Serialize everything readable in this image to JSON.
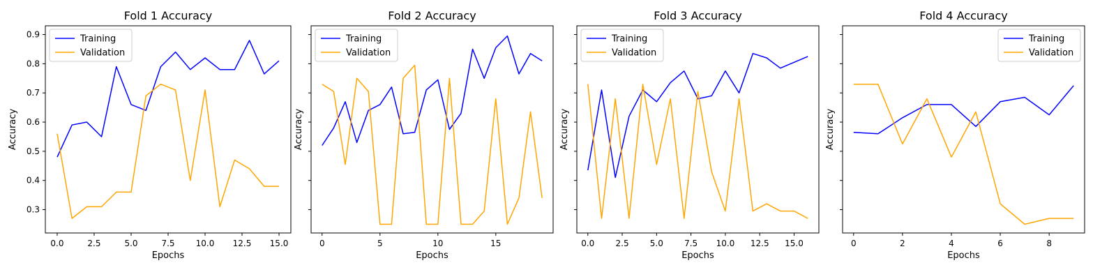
{
  "colors": {
    "training": "#0000ff",
    "validation": "#ffa500"
  },
  "chart_data": [
    {
      "type": "line",
      "title": "Fold 1 Accuracy",
      "xlabel": "Epochs",
      "ylabel": "Accuracy",
      "xlim": [
        -0.8,
        15.8
      ],
      "ylim": [
        0.22,
        0.93
      ],
      "xticks": [
        0,
        2.5,
        5,
        7.5,
        10,
        12.5,
        15
      ],
      "xtick_labels": [
        "0.0",
        "2.5",
        "5.0",
        "7.5",
        "10.0",
        "12.5",
        "15.0"
      ],
      "yticks": [
        0.3,
        0.4,
        0.5,
        0.6,
        0.7,
        0.8,
        0.9
      ],
      "ytick_labels": [
        "0.3",
        "0.4",
        "0.5",
        "0.6",
        "0.7",
        "0.8",
        "0.9"
      ],
      "legend": "upper left",
      "x": [
        0,
        1,
        2,
        3,
        4,
        5,
        6,
        7,
        8,
        9,
        10,
        11,
        12,
        13,
        14,
        15
      ],
      "series": [
        {
          "name": "Training",
          "color": "#0000ff",
          "values": [
            0.48,
            0.59,
            0.6,
            0.55,
            0.79,
            0.66,
            0.64,
            0.79,
            0.84,
            0.78,
            0.82,
            0.78,
            0.78,
            0.88,
            0.765,
            0.81
          ]
        },
        {
          "name": "Validation",
          "color": "#ffa500",
          "values": [
            0.56,
            0.27,
            0.31,
            0.31,
            0.36,
            0.36,
            0.69,
            0.73,
            0.71,
            0.4,
            0.71,
            0.31,
            0.47,
            0.44,
            0.38,
            0.38
          ]
        }
      ]
    },
    {
      "type": "line",
      "title": "Fold 2 Accuracy",
      "xlabel": "Epochs",
      "ylabel": "Accuracy",
      "xlim": [
        -0.95,
        19.95
      ],
      "ylim": [
        0.22,
        0.93
      ],
      "xticks": [
        0,
        5,
        10,
        15
      ],
      "xtick_labels": [
        "0",
        "5",
        "10",
        "15"
      ],
      "yticks": [
        0.3,
        0.4,
        0.5,
        0.6,
        0.7,
        0.8,
        0.9
      ],
      "ytick_labels": [
        "",
        "",
        "",
        "",
        "",
        "",
        ""
      ],
      "legend": "upper left",
      "x": [
        0,
        1,
        2,
        3,
        4,
        5,
        6,
        7,
        8,
        9,
        10,
        11,
        12,
        13,
        14,
        15,
        16,
        17,
        18,
        19
      ],
      "series": [
        {
          "name": "Training",
          "color": "#0000ff",
          "values": [
            0.52,
            0.58,
            0.67,
            0.53,
            0.64,
            0.66,
            0.72,
            0.56,
            0.565,
            0.71,
            0.745,
            0.575,
            0.63,
            0.85,
            0.75,
            0.855,
            0.895,
            0.765,
            0.835,
            0.81
          ]
        },
        {
          "name": "Validation",
          "color": "#ffa500",
          "values": [
            0.73,
            0.705,
            0.455,
            0.75,
            0.705,
            0.25,
            0.25,
            0.75,
            0.795,
            0.25,
            0.25,
            0.75,
            0.25,
            0.25,
            0.295,
            0.68,
            0.25,
            0.34,
            0.635,
            0.34
          ]
        }
      ]
    },
    {
      "type": "line",
      "title": "Fold 3 Accuracy",
      "xlabel": "Epochs",
      "ylabel": "Accuracy",
      "xlim": [
        -0.8,
        16.8
      ],
      "ylim": [
        0.22,
        0.93
      ],
      "xticks": [
        0,
        2.5,
        5,
        7.5,
        10,
        12.5,
        15
      ],
      "xtick_labels": [
        "0.0",
        "2.5",
        "5.0",
        "7.5",
        "10.0",
        "12.5",
        "15.0"
      ],
      "yticks": [
        0.3,
        0.4,
        0.5,
        0.6,
        0.7,
        0.8,
        0.9
      ],
      "ytick_labels": [
        "",
        "",
        "",
        "",
        "",
        "",
        ""
      ],
      "legend": "upper left",
      "x": [
        0,
        1,
        2,
        3,
        4,
        5,
        6,
        7,
        8,
        9,
        10,
        11,
        12,
        13,
        14,
        15,
        16
      ],
      "series": [
        {
          "name": "Training",
          "color": "#0000ff",
          "values": [
            0.435,
            0.71,
            0.41,
            0.62,
            0.71,
            0.67,
            0.735,
            0.775,
            0.68,
            0.69,
            0.775,
            0.7,
            0.835,
            0.82,
            0.785,
            0.805,
            0.825
          ]
        },
        {
          "name": "Validation",
          "color": "#ffa500",
          "values": [
            0.73,
            0.27,
            0.68,
            0.27,
            0.73,
            0.455,
            0.68,
            0.27,
            0.705,
            0.43,
            0.295,
            0.68,
            0.295,
            0.32,
            0.295,
            0.295,
            0.27
          ]
        }
      ]
    },
    {
      "type": "line",
      "title": "Fold 4 Accuracy",
      "xlabel": "Epochs",
      "ylabel": "Accuracy",
      "xlim": [
        -0.45,
        9.45
      ],
      "ylim": [
        0.22,
        0.93
      ],
      "xticks": [
        0,
        2,
        4,
        6,
        8
      ],
      "xtick_labels": [
        "0",
        "2",
        "4",
        "6",
        "8"
      ],
      "yticks": [
        0.3,
        0.4,
        0.5,
        0.6,
        0.7,
        0.8,
        0.9
      ],
      "ytick_labels": [
        "",
        "",
        "",
        "",
        "",
        "",
        ""
      ],
      "legend": "upper right",
      "x": [
        0,
        1,
        2,
        3,
        4,
        5,
        6,
        7,
        8,
        9
      ],
      "series": [
        {
          "name": "Training",
          "color": "#0000ff",
          "values": [
            0.565,
            0.56,
            0.615,
            0.66,
            0.66,
            0.585,
            0.67,
            0.685,
            0.625,
            0.725
          ]
        },
        {
          "name": "Validation",
          "color": "#ffa500",
          "values": [
            0.73,
            0.73,
            0.525,
            0.68,
            0.48,
            0.635,
            0.32,
            0.25,
            0.27,
            0.27
          ]
        }
      ]
    }
  ]
}
